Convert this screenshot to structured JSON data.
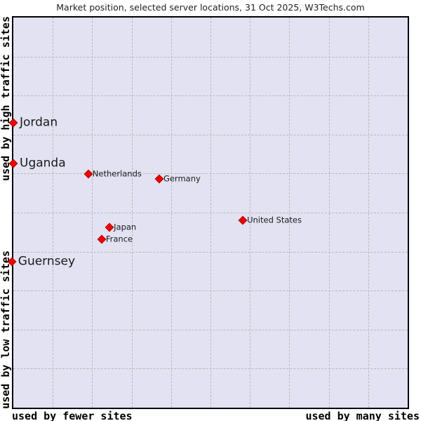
{
  "chart_data": {
    "type": "scatter",
    "title": "Market position, selected server locations, 31 Oct 2025, W3Techs.com",
    "x_axis": {
      "left_label": "used by fewer sites",
      "right_label": "used by many sites"
    },
    "y_axis": {
      "top_label": "used by high traffic sites",
      "bottom_label": "used by low traffic sites"
    },
    "grid": {
      "visible": true,
      "divisions": 10,
      "style": "dashed"
    },
    "colors": {
      "plot_background": "#e2e2f2",
      "gridline": "#b9b9b9",
      "plot_border": "#000000",
      "marker_fill": "#ee0000",
      "marker_border": "#b30000",
      "label_text": "#1a1a1a"
    },
    "points": [
      {
        "label": "Jordan",
        "x_pct": 0.0,
        "y_pct": 27.0,
        "emphasis": "large"
      },
      {
        "label": "Uganda",
        "x_pct": 0.0,
        "y_pct": 37.4,
        "emphasis": "large"
      },
      {
        "label": "Netherlands",
        "x_pct": 19.0,
        "y_pct": 40.1,
        "emphasis": "small"
      },
      {
        "label": "Germany",
        "x_pct": 37.0,
        "y_pct": 41.4,
        "emphasis": "small"
      },
      {
        "label": "Japan",
        "x_pct": 24.4,
        "y_pct": 53.8,
        "emphasis": "small"
      },
      {
        "label": "France",
        "x_pct": 22.4,
        "y_pct": 56.8,
        "emphasis": "small"
      },
      {
        "label": "United States",
        "x_pct": 58.2,
        "y_pct": 52.0,
        "emphasis": "small"
      },
      {
        "label": "Guernsey",
        "x_pct": -0.4,
        "y_pct": 62.6,
        "emphasis": "large"
      }
    ]
  }
}
